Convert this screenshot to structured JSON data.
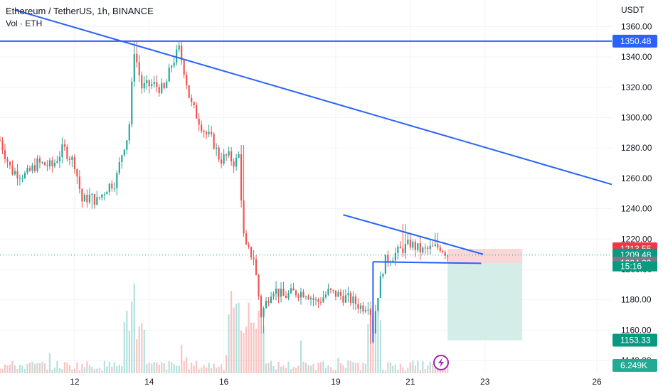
{
  "header": {
    "title": "Ethereum / TetherUS, 1h, BINANCE",
    "volume_label": "Vol · ETH"
  },
  "colors": {
    "up": "#26a69a",
    "down": "#ef5350",
    "trendline": "#2962ff",
    "resistance_badge": "#2962ff",
    "stop_zone": "#f7c9c9",
    "target_zone": "#cdeae3",
    "stop_badge": "#f23645",
    "price_badge": "#089981",
    "entry_badge": "#787b86",
    "target_badge": "#089981",
    "volume_badge": "#22ab94",
    "alert_icon": "#9c27b0"
  },
  "chart_data": {
    "type": "candlestick",
    "symbol": "Ethereum / TetherUS",
    "interval": "1h",
    "exchange": "BINANCE",
    "ylabel": "USDT",
    "ylim": [
      1130,
      1370
    ],
    "y_ticks": [
      1140,
      1160,
      1180,
      1200,
      1220,
      1240,
      1260,
      1280,
      1300,
      1320,
      1340,
      1360
    ],
    "x_range": [
      10,
      26.4
    ],
    "x_ticks": [
      {
        "day": 12,
        "label": "12"
      },
      {
        "day": 14,
        "label": "14"
      },
      {
        "day": 16,
        "label": "16"
      },
      {
        "day": 19,
        "label": "19"
      },
      {
        "day": 21,
        "label": "21"
      },
      {
        "day": 23,
        "label": "23"
      },
      {
        "day": 26,
        "label": "26"
      }
    ],
    "anchors": [
      [
        10.0,
        1285
      ],
      [
        10.3,
        1265
      ],
      [
        10.7,
        1262
      ],
      [
        11.0,
        1270
      ],
      [
        11.4,
        1268
      ],
      [
        11.7,
        1280
      ],
      [
        12.0,
        1270
      ],
      [
        12.2,
        1245
      ],
      [
        12.4,
        1248
      ],
      [
        12.6,
        1245
      ],
      [
        12.9,
        1255
      ],
      [
        13.1,
        1258
      ],
      [
        13.3,
        1280
      ],
      [
        13.45,
        1290
      ],
      [
        13.6,
        1345
      ],
      [
        13.8,
        1320
      ],
      [
        14.1,
        1322
      ],
      [
        14.4,
        1318
      ],
      [
        14.6,
        1335
      ],
      [
        14.8,
        1345
      ],
      [
        14.95,
        1330
      ],
      [
        15.1,
        1310
      ],
      [
        15.3,
        1300
      ],
      [
        15.5,
        1290
      ],
      [
        15.7,
        1285
      ],
      [
        15.9,
        1272
      ],
      [
        16.1,
        1275
      ],
      [
        16.3,
        1270
      ],
      [
        16.4,
        1275
      ],
      [
        16.55,
        1215
      ],
      [
        16.8,
        1208
      ],
      [
        17.0,
        1170
      ],
      [
        17.3,
        1188
      ],
      [
        17.6,
        1182
      ],
      [
        17.9,
        1185
      ],
      [
        18.2,
        1185
      ],
      [
        18.5,
        1178
      ],
      [
        18.8,
        1185
      ],
      [
        19.1,
        1183
      ],
      [
        19.4,
        1180
      ],
      [
        19.7,
        1175
      ],
      [
        19.9,
        1178
      ],
      [
        20.0,
        1160
      ],
      [
        20.1,
        1180
      ],
      [
        20.3,
        1205
      ],
      [
        20.7,
        1212
      ],
      [
        21.0,
        1217
      ],
      [
        21.3,
        1212
      ],
      [
        21.6,
        1214
      ],
      [
        21.8,
        1215
      ],
      [
        22.0,
        1210
      ]
    ],
    "last_price": 1209.48,
    "countdown": "15:16",
    "trendlines": [
      {
        "from": [
          10.4,
          1371
        ],
        "to": [
          26.4,
          1256
        ]
      },
      {
        "from": [
          19.2,
          1236
        ],
        "to": [
          22.95,
          1210
        ]
      },
      {
        "from": [
          20.0,
          1205
        ],
        "to": [
          22.9,
          1204
        ]
      },
      {
        "from": [
          20.0,
          1205
        ],
        "to": [
          20.0,
          1152
        ]
      }
    ],
    "horizontal_level": 1350.48,
    "position": {
      "x_start": 22.0,
      "x_end": 24.0,
      "entry": 1204.2,
      "stop": 1213.55,
      "target": 1153.33
    },
    "price_badges": [
      {
        "label": "1350.48",
        "price": 1350.48,
        "color": "#2962ff"
      },
      {
        "label": "1213.55",
        "price": 1213.55,
        "color": "#f23645"
      },
      {
        "label": "1209.48",
        "price": 1209.48,
        "color": "#089981"
      },
      {
        "label": "1204.20",
        "price": 1204.2,
        "color": "#787b86"
      },
      {
        "label": "1153.33",
        "price": 1153.33,
        "color": "#089981"
      }
    ],
    "volume_label": "6.249K"
  }
}
